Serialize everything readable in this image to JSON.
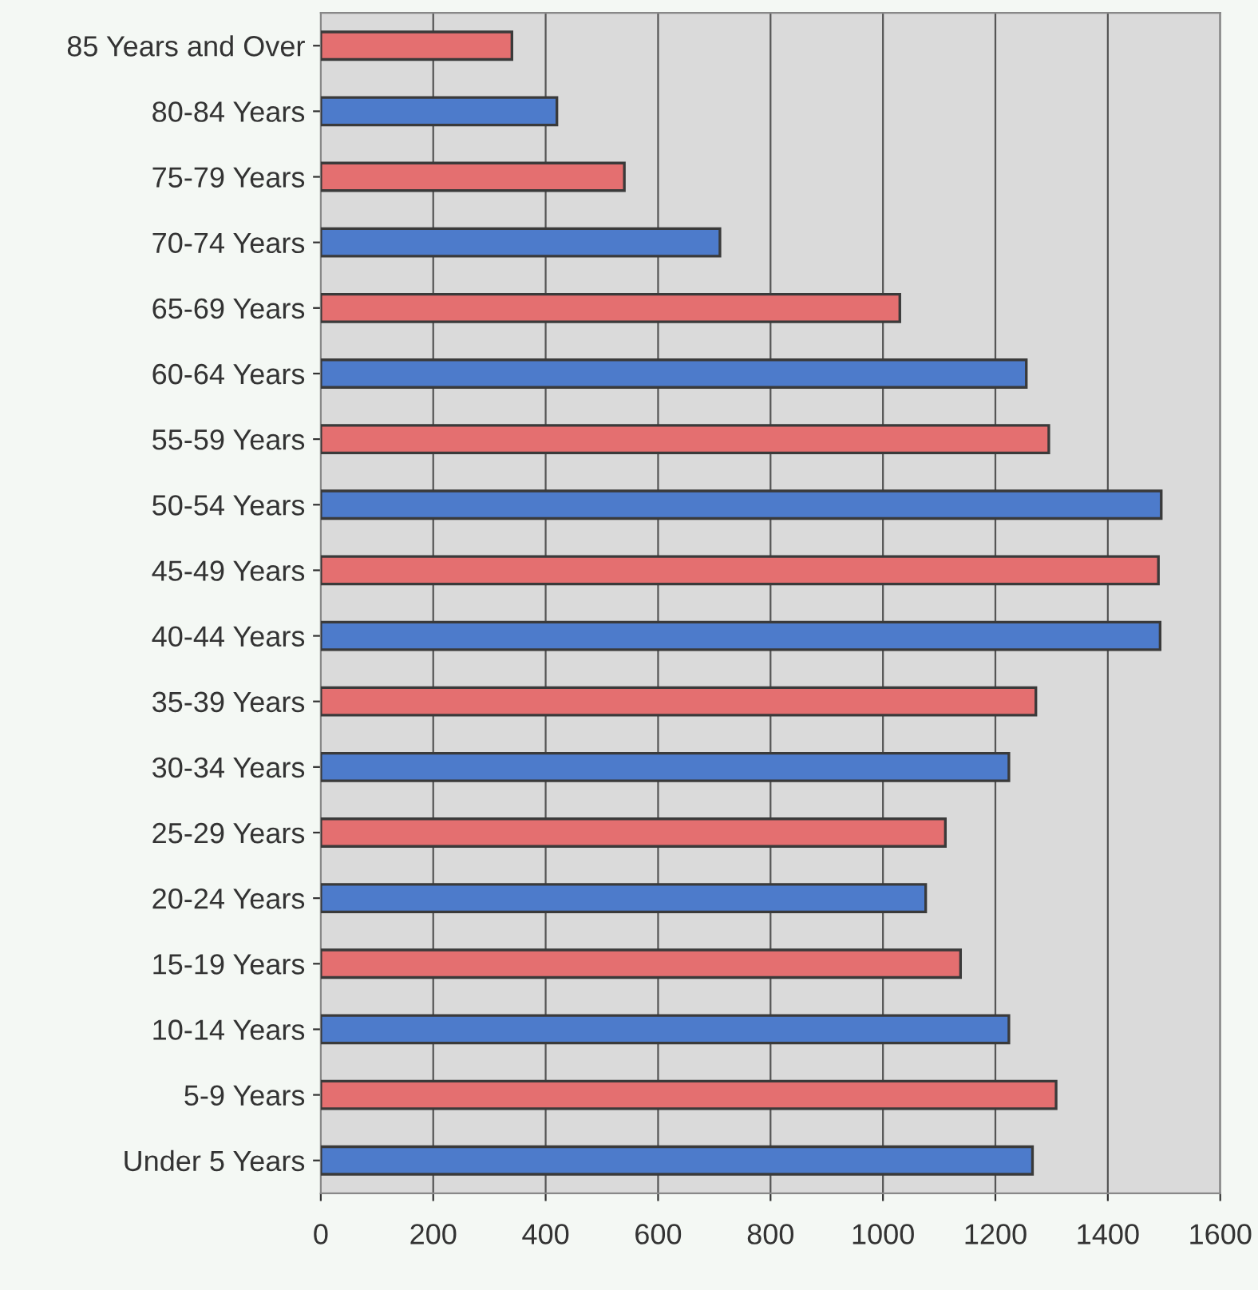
{
  "chart_data": {
    "type": "bar",
    "orientation": "horizontal",
    "categories": [
      "85 Years and Over",
      "80-84 Years",
      "75-79 Years",
      "70-74 Years",
      "65-69 Years",
      "60-64 Years",
      "55-59 Years",
      "50-54 Years",
      "45-49 Years",
      "40-44 Years",
      "35-39 Years",
      "30-34 Years",
      "25-29 Years",
      "20-24 Years",
      "15-19 Years",
      "10-14 Years",
      "5-9 Years",
      "Under 5 Years"
    ],
    "values": [
      340,
      420,
      540,
      710,
      1030,
      1255,
      1295,
      1495,
      1490,
      1493,
      1272,
      1224,
      1111,
      1076,
      1138,
      1224,
      1308,
      1266
    ],
    "colors": [
      "#e46f70",
      "#4d7bcb",
      "#e46f70",
      "#4d7bcb",
      "#e46f70",
      "#4d7bcb",
      "#e46f70",
      "#4d7bcb",
      "#e46f70",
      "#4d7bcb",
      "#e46f70",
      "#4d7bcb",
      "#e46f70",
      "#4d7bcb",
      "#e46f70",
      "#4d7bcb",
      "#e46f70",
      "#4d7bcb"
    ],
    "xlim": [
      0,
      1600
    ],
    "xticks": [
      0,
      200,
      400,
      600,
      800,
      1000,
      1200,
      1400,
      1600
    ],
    "grid": "x",
    "legend": false
  }
}
